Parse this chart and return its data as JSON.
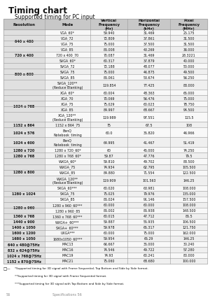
{
  "title": "Timing chart",
  "subtitle": "Supported timing for PC input",
  "col_headers": [
    "Resolution",
    "Mode",
    "Vertical\nFrequency\n(Hz)",
    "Horizontal\nFrequency\n(kHz)",
    "Pixel\nFrequency\n(MHz)"
  ],
  "row_groups": [
    {
      "resolution": "640 x 480",
      "modes": [
        [
          "VGA_60*",
          "59.940",
          "31.469",
          "25.175"
        ],
        [
          "VGA_72",
          "72.809",
          "37.861",
          "31.500"
        ],
        [
          "VGA_75",
          "75.000",
          "37.500",
          "31.500"
        ],
        [
          "VGA_85",
          "85.008",
          "43.269",
          "36.000"
        ]
      ]
    },
    {
      "resolution": "720 x 400",
      "modes": [
        [
          "720 x 400_70",
          "70.087",
          "31.469",
          "28.3221"
        ]
      ]
    },
    {
      "resolution": "800 x 600",
      "modes": [
        [
          "SVGA_60*",
          "60.317",
          "37.879",
          "40.000"
        ],
        [
          "SVGA_72",
          "72.188",
          "48.077",
          "50.000"
        ],
        [
          "SVGA_75",
          "75.000",
          "46.875",
          "49.500"
        ],
        [
          "SVGA_85",
          "85.061",
          "53.674",
          "56.250"
        ],
        [
          "SVGA_120**\n(Reduce Blanking)",
          "119.854",
          "77.425",
          "83.000"
        ]
      ]
    },
    {
      "resolution": "1024 x 768",
      "modes": [
        [
          "XGA_60*",
          "60.004",
          "48.363",
          "65.000"
        ],
        [
          "XGA_70",
          "70.069",
          "56.476",
          "75.000"
        ],
        [
          "XGA_75",
          "75.029",
          "60.023",
          "78.750"
        ],
        [
          "XGA_85",
          "84.997",
          "68.667",
          "94.500"
        ],
        [
          "XGA_120**\n(Reduce Blanking)",
          "119.989",
          "97.551",
          "115.5"
        ]
      ]
    },
    {
      "resolution": "1152 x 864",
      "modes": [
        [
          "1152 x 864_75",
          "75",
          "67.5",
          "108"
        ]
      ]
    },
    {
      "resolution": "1024 x 576",
      "modes": [
        [
          "BenQ\nNotebook_timing",
          "60.0",
          "35.820",
          "46.966"
        ]
      ]
    },
    {
      "resolution": "1024 x 600",
      "modes": [
        [
          "BenQ\nNotebook_timing",
          "64.995",
          "41.467",
          "51.419"
        ]
      ]
    },
    {
      "resolution": "1280 x 720",
      "modes": [
        [
          "1280 x 720_60*",
          "60",
          "45.000",
          "74.250"
        ]
      ]
    },
    {
      "resolution": "1280 x 768",
      "modes": [
        [
          "1280 x 768_60*",
          "59.87",
          "47.776",
          "79.5"
        ]
      ]
    },
    {
      "resolution": "1280 x 800",
      "modes": [
        [
          "WXGA_60*",
          "59.810",
          "49.702",
          "83.500"
        ],
        [
          "WXGA_75",
          "74.934",
          "62.795",
          "105.500"
        ],
        [
          "WXGA_85",
          "84.880",
          "71.554",
          "122.500"
        ],
        [
          "WXGA_120**\n(Reduce Blanking)",
          "119.909",
          "101.563",
          "146.25"
        ]
      ]
    },
    {
      "resolution": "1280 x 1024",
      "modes": [
        [
          "SXGA_60***",
          "60.020",
          "63.981",
          "108.000"
        ],
        [
          "SXGA_75",
          "75.025",
          "79.976",
          "135.000"
        ],
        [
          "SXGA_85",
          "85.024",
          "91.146",
          "157.500"
        ]
      ]
    },
    {
      "resolution": "1280 x 960",
      "modes": [
        [
          "1280 x 960_60***",
          "60.000",
          "60.000",
          "108.000"
        ],
        [
          "1280 x 960_85",
          "85.002",
          "85.938",
          "148.500"
        ]
      ]
    },
    {
      "resolution": "1360 x 768",
      "modes": [
        [
          "1360 x 768_60***",
          "60.015",
          "47.712",
          "85.5"
        ]
      ]
    },
    {
      "resolution": "1440 x 900",
      "modes": [
        [
          "WXGA+_60***",
          "59.887",
          "55.935",
          "106.500"
        ]
      ]
    },
    {
      "resolution": "1400 x 1050",
      "modes": [
        [
          "SXGA+_60***",
          "59.978",
          "65.317",
          "121.750"
        ]
      ]
    },
    {
      "resolution": "1600 x 1200",
      "modes": [
        [
          "UXGA***",
          "60.000",
          "75.000",
          "162.000"
        ]
      ]
    },
    {
      "resolution": "1680 x 1050",
      "modes": [
        [
          "1680x1050_60***",
          "59.954",
          "65.29",
          "146.25"
        ]
      ]
    },
    {
      "resolution": "640 x 480@75Hz",
      "modes": [
        [
          "MAC13",
          "66.667",
          "35.000",
          "30.240"
        ]
      ]
    },
    {
      "resolution": "832 x 624@75Hz",
      "modes": [
        [
          "MAC16",
          "74.546",
          "49.722",
          "57.280"
        ]
      ]
    },
    {
      "resolution": "1024 x 768@75Hz",
      "modes": [
        [
          "MAC19",
          "74.93",
          "60.241",
          "80.000"
        ]
      ]
    },
    {
      "resolution": "1152 x 870@75Hz",
      "modes": [
        [
          "MAC21",
          "75.060",
          "68.680",
          "100.000"
        ]
      ]
    }
  ],
  "footnote_lines": [
    [
      "*Supported timing for 3D signal with ",
      "Frame Sequential, Top Bottom and Side by Side",
      " format."
    ],
    [
      "**Supported timing for 3D signal with ",
      "Frame Sequential",
      " format."
    ],
    [
      "***Supported timing for 3D signal with ",
      "Top Bottom",
      " and ",
      "Side by Side",
      " format."
    ]
  ],
  "header_bg": "#c8c8c8",
  "res_bg": "#e0e0e0",
  "mode_bg_alt": "#efefef",
  "mode_bg": "#f8f8f8",
  "border_color": "#999999",
  "text_color": "#111111",
  "title_color": "#111111",
  "bg_color": "#ffffff"
}
